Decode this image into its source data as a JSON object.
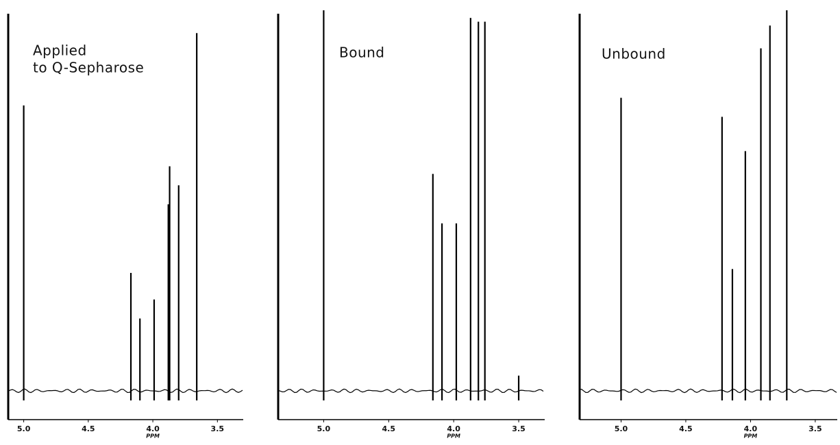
{
  "chart_data": [
    {
      "type": "spectrum",
      "title": [
        "Applied",
        "to Q-Sepharose"
      ],
      "xlabel": "PPM",
      "xlim": [
        5.12,
        3.3
      ],
      "xticks": [
        {
          "value": 5.0,
          "label": "5.0"
        },
        4.5,
        {
          "value": 4.0,
          "label": "4.0"
        },
        3.5
      ],
      "ylim": [
        0,
        100
      ],
      "color": "#000000",
      "x": [
        5.0,
        4.17,
        4.1,
        3.99,
        3.88,
        3.87,
        3.8,
        3.66
      ],
      "values": [
        75,
        31,
        19,
        24,
        49,
        59,
        54,
        94
      ]
    },
    {
      "type": "spectrum",
      "title": [
        "Bound"
      ],
      "xlabel": "PPM",
      "xlim": [
        5.35,
        3.3
      ],
      "xticks": [
        {
          "value": 5.0,
          "label": "5.0"
        },
        4.5,
        {
          "value": 4.0,
          "label": "4.0"
        },
        3.5
      ],
      "ylim": [
        0,
        100
      ],
      "color": "#000000",
      "x": [
        5.0,
        4.16,
        4.09,
        3.98,
        3.87,
        3.81,
        3.76,
        3.5
      ],
      "values": [
        100,
        57,
        44,
        44,
        98,
        97,
        97,
        4
      ]
    },
    {
      "type": "spectrum",
      "title": [
        "Unbound"
      ],
      "xlabel": "PPM",
      "xlim": [
        5.32,
        3.33
      ],
      "xticks": [
        {
          "value": 5.0,
          "label": "5.0"
        },
        4.5,
        {
          "value": 4.0,
          "label": "4.0"
        },
        3.5
      ],
      "ylim": [
        0,
        100
      ],
      "color": "#000000",
      "x": [
        5.0,
        4.22,
        4.14,
        4.04,
        3.92,
        3.85,
        3.72
      ],
      "values": [
        77,
        72,
        32,
        63,
        90,
        96,
        100
      ]
    }
  ]
}
